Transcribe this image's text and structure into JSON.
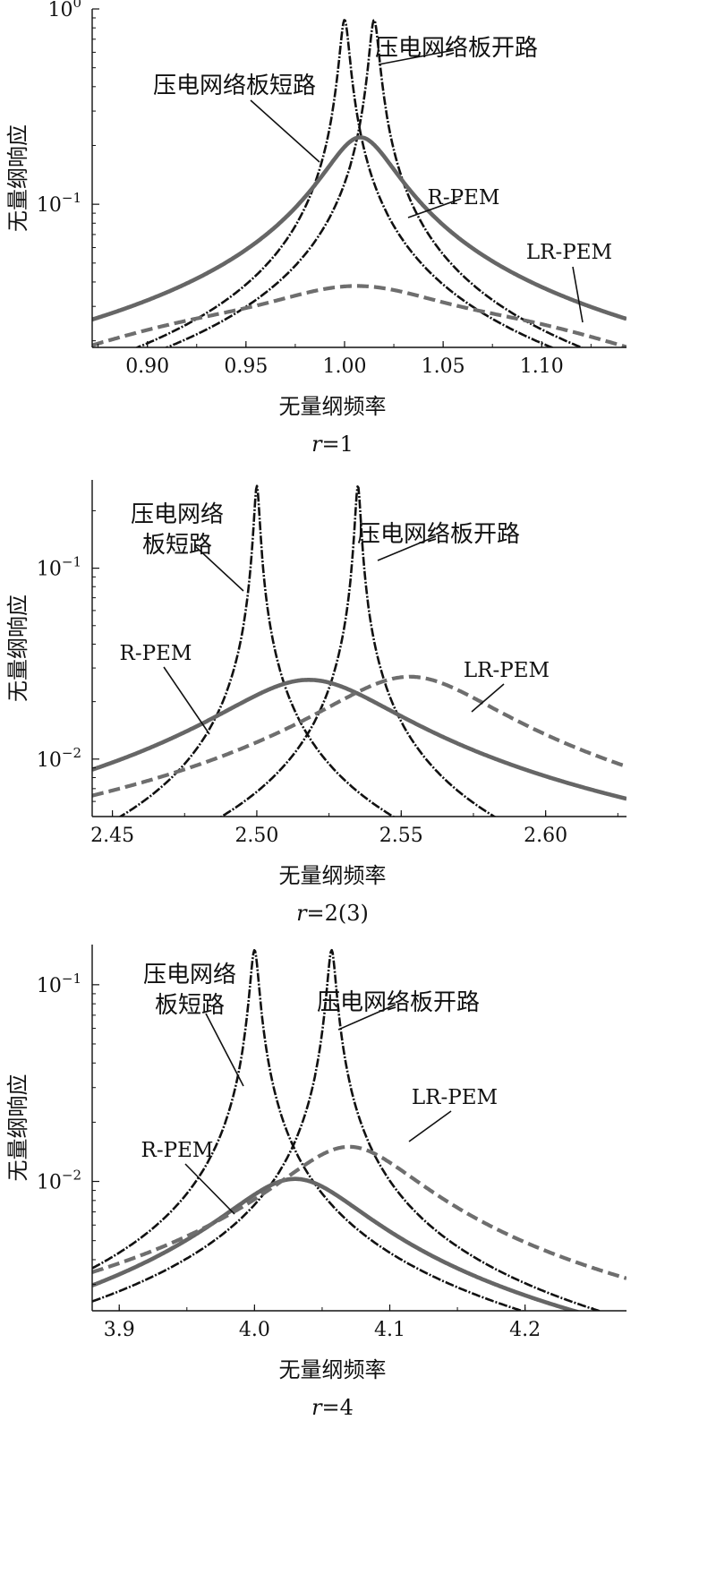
{
  "figure": {
    "colors": {
      "open": "#111111",
      "short": "#111111",
      "rpem": "#666666",
      "lrpem": "#6e6e6e"
    },
    "panels_ids": [
      "r1",
      "r23",
      "r4"
    ]
  },
  "chart_data": [
    {
      "id": "r1",
      "type": "line",
      "title": "",
      "caption_italic": "r",
      "caption_rest": "=1",
      "xlabel": "无量纲频率",
      "ylabel": "无量纲响应",
      "x_scale": "linear",
      "y_scale": "log",
      "xlim": [
        0.872,
        1.143
      ],
      "ylim": [
        0.0185,
        1.0
      ],
      "grid": false,
      "x_ticks": [
        0.9,
        0.95,
        1.0,
        1.05,
        1.1
      ],
      "x_tick_labels": [
        "0.90",
        "0.95",
        "1.00",
        "1.05",
        "1.10"
      ],
      "y_ticks": [
        1.0,
        0.1
      ],
      "y_tick_labels": [
        {
          "base": "10",
          "exp": "0"
        },
        {
          "base": "10",
          "exp": "−1"
        }
      ],
      "series": [
        {
          "key": "short",
          "name": "压电网络板短路",
          "model": "single",
          "f0": 1.0,
          "peak": 0.88,
          "style": "dashdot"
        },
        {
          "key": "open",
          "name": "压电网络板开路",
          "model": "single",
          "f0": 1.015,
          "peak": 0.88,
          "style": "dashdot"
        },
        {
          "key": "rpem",
          "name": "R-PEM",
          "model": "single",
          "f0": 1.008,
          "peak": 0.22,
          "style": "solid"
        },
        {
          "key": "lrpem",
          "name": "LR-PEM",
          "model": "double",
          "f1": 0.95,
          "f2": 1.062,
          "peak": 0.036,
          "dip": 0.031,
          "style": "dashed"
        }
      ],
      "annotations": [
        {
          "text": "压电网络板短路",
          "lines": [
            "压电网络板短路"
          ]
        },
        {
          "text": "压电网络板开路",
          "lines": [
            "压电网络板开路"
          ]
        },
        {
          "text": "R-PEM",
          "lines": [
            "R-PEM"
          ]
        },
        {
          "text": "LR-PEM",
          "lines": [
            "LR-PEM"
          ]
        }
      ]
    },
    {
      "id": "r23",
      "type": "line",
      "title": "",
      "caption_italic": "r",
      "caption_rest": "=2(3)",
      "xlabel": "无量纲频率",
      "ylabel": "无量纲响应",
      "x_scale": "linear",
      "y_scale": "log",
      "xlim": [
        2.443,
        2.628
      ],
      "ylim": [
        0.005,
        0.29
      ],
      "grid": false,
      "x_ticks": [
        2.45,
        2.5,
        2.55,
        2.6
      ],
      "x_tick_labels": [
        "2.45",
        "2.50",
        "2.55",
        "2.60"
      ],
      "y_ticks": [
        0.1,
        0.01
      ],
      "y_tick_labels": [
        {
          "base": "10",
          "exp": "−1"
        },
        {
          "base": "10",
          "exp": "−2"
        }
      ],
      "series": [
        {
          "key": "short",
          "name": "压电网络板短路",
          "model": "single",
          "f0": 2.5,
          "peak": 0.27,
          "style": "dashdot"
        },
        {
          "key": "open",
          "name": "压电网络板开路",
          "model": "single",
          "f0": 2.535,
          "peak": 0.27,
          "style": "dashdot"
        },
        {
          "key": "rpem",
          "name": "R-PEM",
          "model": "single",
          "f0": 2.518,
          "peak": 0.026,
          "style": "solid"
        },
        {
          "key": "lrpem",
          "name": "LR-PEM",
          "model": "single",
          "f0": 2.553,
          "peak": 0.027,
          "style": "dashed"
        }
      ],
      "annotations": [
        {
          "text": "压电网络板短路",
          "lines": [
            "压电网络",
            "板短路"
          ]
        },
        {
          "text": "压电网络板开路",
          "lines": [
            "压电网络板开路"
          ]
        },
        {
          "text": "R-PEM",
          "lines": [
            "R-PEM"
          ]
        },
        {
          "text": "LR-PEM",
          "lines": [
            "LR-PEM"
          ]
        }
      ]
    },
    {
      "id": "r4",
      "type": "line",
      "title": "",
      "caption_italic": "r",
      "caption_rest": "=4",
      "xlabel": "无量纲频率",
      "ylabel": "无量纲响应",
      "x_scale": "linear",
      "y_scale": "log",
      "xlim": [
        3.88,
        4.275
      ],
      "ylim": [
        0.0022,
        0.16
      ],
      "grid": false,
      "x_ticks": [
        3.9,
        4.0,
        4.1,
        4.2
      ],
      "x_tick_labels": [
        "3.9",
        "4.0",
        "4.1",
        "4.2"
      ],
      "y_ticks": [
        0.1,
        0.01
      ],
      "y_tick_labels": [
        {
          "base": "10",
          "exp": "−1"
        },
        {
          "base": "10",
          "exp": "−2"
        }
      ],
      "series": [
        {
          "key": "short",
          "name": "压电网络板短路",
          "model": "single",
          "f0": 4.0,
          "peak": 0.15,
          "style": "dashdot"
        },
        {
          "key": "open",
          "name": "压电网络板开路",
          "model": "single",
          "f0": 4.057,
          "peak": 0.15,
          "style": "dashdot"
        },
        {
          "key": "rpem",
          "name": "R-PEM",
          "model": "single",
          "f0": 4.03,
          "peak": 0.0103,
          "style": "solid"
        },
        {
          "key": "lrpem",
          "name": "LR-PEM",
          "model": "single",
          "f0": 4.07,
          "peak": 0.015,
          "style": "dashed"
        }
      ],
      "annotations": [
        {
          "text": "压电网络板短路",
          "lines": [
            "压电网络",
            "板短路"
          ]
        },
        {
          "text": "压电网络板开路",
          "lines": [
            "压电网络板开路"
          ]
        },
        {
          "text": "R-PEM",
          "lines": [
            "R-PEM"
          ]
        },
        {
          "text": "LR-PEM",
          "lines": [
            "LR-PEM"
          ]
        }
      ]
    }
  ]
}
